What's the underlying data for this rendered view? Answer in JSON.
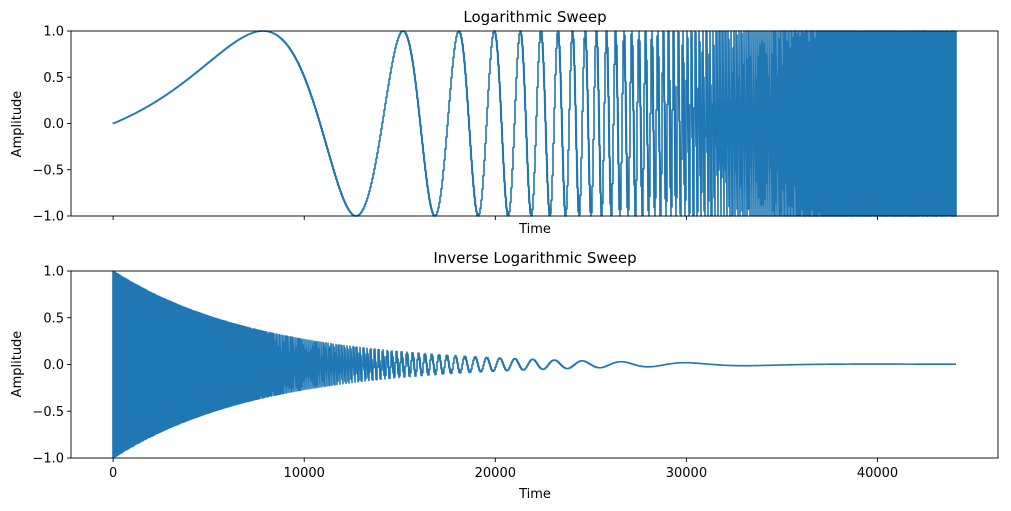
{
  "chart_data": [
    {
      "type": "line",
      "title": "Logarithmic Sweep",
      "xlabel": "Time",
      "ylabel": "Amplitude",
      "xlim": [
        -2205,
        46305
      ],
      "ylim": [
        -1.0,
        1.0
      ],
      "x_ticks": [
        0,
        10000,
        20000,
        30000,
        40000
      ],
      "x_tick_labels_visible": false,
      "y_ticks": [
        -1.0,
        -0.5,
        0.0,
        0.5,
        1.0
      ],
      "y_tick_labels": [
        "−1.0",
        "−0.5",
        "0.0",
        "0.5",
        "1.0"
      ],
      "grid": false,
      "color": "#1f77b4",
      "series": [
        {
          "signal": "logarithmic sine sweep",
          "num_samples": 44100,
          "x_range": [
            0,
            44100
          ],
          "envelope_start": 1.0,
          "envelope_end": 1.0,
          "start_phase_value": 0.0
        }
      ]
    },
    {
      "type": "line",
      "title": "Inverse Logarithmic Sweep",
      "xlabel": "Time",
      "ylabel": "Amplitude",
      "xlim": [
        -2205,
        46305
      ],
      "ylim": [
        -1.0,
        1.0
      ],
      "x_ticks": [
        0,
        10000,
        20000,
        30000,
        40000
      ],
      "x_tick_labels": [
        "0",
        "10000",
        "20000",
        "30000",
        "40000"
      ],
      "y_ticks": [
        -1.0,
        -0.5,
        0.0,
        0.5,
        1.0
      ],
      "y_tick_labels": [
        "−1.0",
        "−0.5",
        "0.0",
        "0.5",
        "1.0"
      ],
      "grid": false,
      "color": "#1f77b4",
      "series": [
        {
          "signal": "time-reversed logarithmic sweep with exponentially decaying envelope",
          "num_samples": 44100,
          "x_range": [
            0,
            44100
          ],
          "envelope_start": 1.0,
          "envelope_end": 0.003,
          "start_phase_value": 1.0
        }
      ]
    }
  ]
}
